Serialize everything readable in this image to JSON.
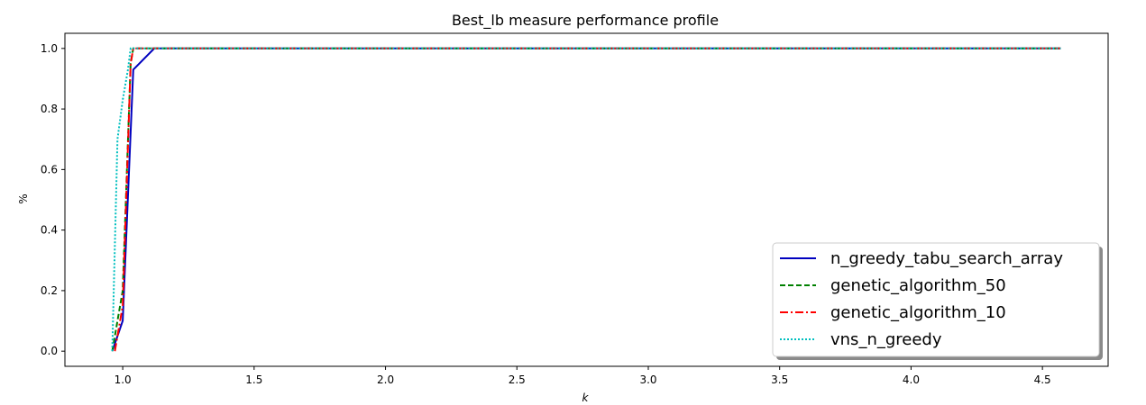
{
  "chart_data": {
    "type": "line",
    "title": "Best_lb measure performance profile",
    "xlabel": "k",
    "ylabel": "%",
    "xlim": [
      0.78,
      4.75
    ],
    "ylim": [
      -0.05,
      1.05
    ],
    "xticks": [
      "1.0",
      "1.5",
      "2.0",
      "2.5",
      "3.0",
      "3.5",
      "4.0",
      "4.5"
    ],
    "yticks": [
      "0.0",
      "0.2",
      "0.4",
      "0.6",
      "0.8",
      "1.0"
    ],
    "grid": false,
    "legend_position": "lower-right",
    "series": [
      {
        "name": "n_greedy_tabu_search_array",
        "color": "#0000bf",
        "style": "solid",
        "x": [
          0.96,
          0.98,
          1.0,
          1.04,
          1.12,
          4.57
        ],
        "y": [
          0.0,
          0.05,
          0.1,
          0.93,
          1.0,
          1.0
        ]
      },
      {
        "name": "genetic_algorithm_50",
        "color": "#008000",
        "style": "dashed",
        "x": [
          0.96,
          0.99,
          1.0,
          1.03,
          1.04,
          4.57
        ],
        "y": [
          0.0,
          0.15,
          0.2,
          0.95,
          1.0,
          1.0
        ]
      },
      {
        "name": "genetic_algorithm_10",
        "color": "#ff0000",
        "style": "dashdot",
        "x": [
          0.97,
          0.99,
          1.0,
          1.03,
          1.04,
          4.57
        ],
        "y": [
          0.0,
          0.1,
          0.15,
          0.95,
          1.0,
          1.0
        ]
      },
      {
        "name": "vns_n_greedy",
        "color": "#00bfbf",
        "style": "dotted",
        "x": [
          0.96,
          0.98,
          1.0,
          1.02,
          1.03,
          4.57
        ],
        "y": [
          0.0,
          0.7,
          0.83,
          0.93,
          1.0,
          1.0
        ]
      }
    ]
  }
}
